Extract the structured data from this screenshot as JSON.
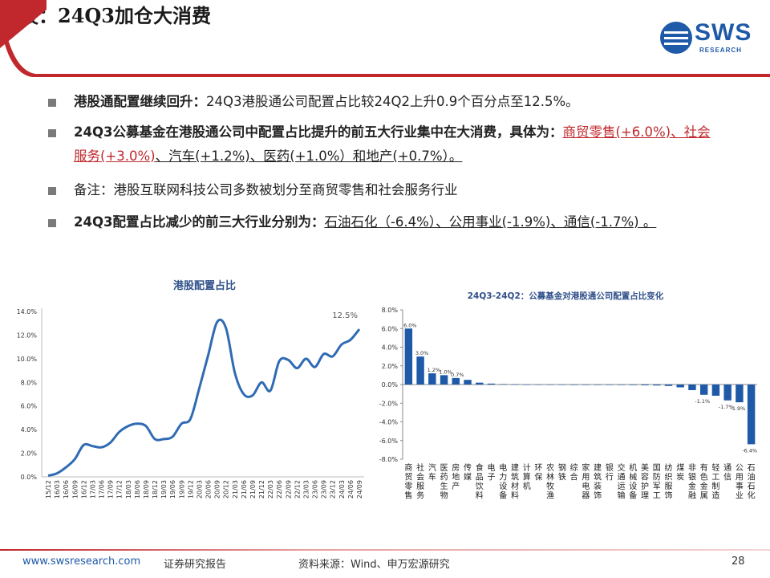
{
  "slide": {
    "title": "港股：24Q3加仓大消费",
    "page_number": "28"
  },
  "logo": {
    "name": "SWS",
    "sub": "RESEARCH",
    "icon": "sws-logo-icon"
  },
  "bullets": [
    {
      "bold": "港股通配置继续回升：",
      "text": "24Q3港股通公司配置占比较24Q2上升0.9个百分点至12.5%。"
    },
    {
      "bold": "24Q3公募基金在港股通公司中配置占比提升的前五大行业集中在大消费，具体为：",
      "red": "商贸零售(+6.0%)、社会服务(+3.0%)",
      "rest": "、汽车(+1.2%)、医药(+1.0%）和地产(+0.7%）。"
    },
    {
      "text": "备注：港股互联网科技公司多数被划分至商贸零售和社会服务行业"
    },
    {
      "bold": "24Q3配置占比减少的前三大行业分别为：",
      "underlined": "石油石化（-6.4%）、公用事业(-1.9%)、通信(-1.7%) 。"
    }
  ],
  "footer": {
    "website": "www.swsresearch.com",
    "report_type": "证券研究报告",
    "source": "资料来源：Wind、申万宏源研究"
  },
  "colors": {
    "accent_red": "#c0282d",
    "line_blue": "#2f6bb3",
    "logo_blue": "#1f5aa8"
  },
  "chart_data": [
    {
      "type": "line",
      "title": "港股配置占比",
      "ylim": [
        0,
        14
      ],
      "y_ticks": [
        "0.0%",
        "2.0%",
        "4.0%",
        "6.0%",
        "8.0%",
        "10.0%",
        "12.0%",
        "14.0%"
      ],
      "x_ticks": [
        "15/12",
        "16/03",
        "16/06",
        "16/09",
        "16/12",
        "17/03",
        "17/06",
        "17/09",
        "17/12",
        "18/03",
        "18/06",
        "18/09",
        "18/12",
        "19/03",
        "19/06",
        "19/09",
        "19/12",
        "20/03",
        "20/06",
        "20/09",
        "20/12",
        "21/03",
        "21/06",
        "21/09",
        "21/12",
        "22/03",
        "22/06",
        "22/09",
        "22/12",
        "23/03",
        "23/06",
        "23/09",
        "23/12",
        "24/03",
        "24/06",
        "24/09"
      ],
      "annotation": "12.5%",
      "values": [
        0.1,
        0.3,
        0.8,
        1.5,
        2.7,
        2.6,
        2.5,
        2.9,
        3.8,
        4.3,
        4.5,
        4.3,
        3.2,
        3.2,
        3.4,
        4.5,
        4.9,
        7.5,
        10.3,
        13.1,
        12.6,
        8.8,
        7.0,
        6.9,
        8.0,
        7.3,
        9.8,
        9.9,
        9.2,
        10.0,
        9.3,
        10.4,
        10.2,
        11.2,
        11.6,
        12.5
      ],
      "grid": false
    },
    {
      "type": "bar",
      "title": "24Q3-24Q2：公募基金对港股通公司配置占比变化",
      "ylim": [
        -8,
        8
      ],
      "y_ticks": [
        "8.0%",
        "6.0%",
        "4.0%",
        "2.0%",
        "0.0%",
        "-2.0%",
        "-4.0%",
        "-6.0%",
        "-8.0%"
      ],
      "categories": [
        "商贸零售",
        "社会服务",
        "汽车",
        "医药生物",
        "房地产",
        "传媒",
        "食品饮料",
        "电子",
        "电力设备",
        "建筑材料",
        "计算机",
        "环保",
        "农林牧渔",
        "钢铁",
        "综合",
        "家用电器",
        "建筑装饰",
        "银行",
        "交通运输",
        "机械设备",
        "美容护理",
        "国防军工",
        "纺织服饰",
        "煤炭",
        "非银金融",
        "有色金属",
        "轻工制造",
        "通信",
        "公用事业",
        "石油石化"
      ],
      "values": [
        6.0,
        3.0,
        1.2,
        1.0,
        0.7,
        0.5,
        0.2,
        0.1,
        0.05,
        0.03,
        0.02,
        0.02,
        0.01,
        0.01,
        0.0,
        -0.01,
        -0.02,
        -0.03,
        -0.05,
        -0.06,
        -0.08,
        -0.1,
        -0.15,
        -0.3,
        -0.6,
        -1.1,
        -1.2,
        -1.7,
        -1.9,
        -6.4
      ],
      "data_labels": {
        "0": "6.0%",
        "1": "3.0%",
        "2": "1.2%",
        "3": "1.0%",
        "4": "0.7%",
        "25": "-1.1%",
        "27": "-1.7%",
        "28": "-1.9%",
        "29": "-6.4%"
      },
      "grid": false
    }
  ]
}
